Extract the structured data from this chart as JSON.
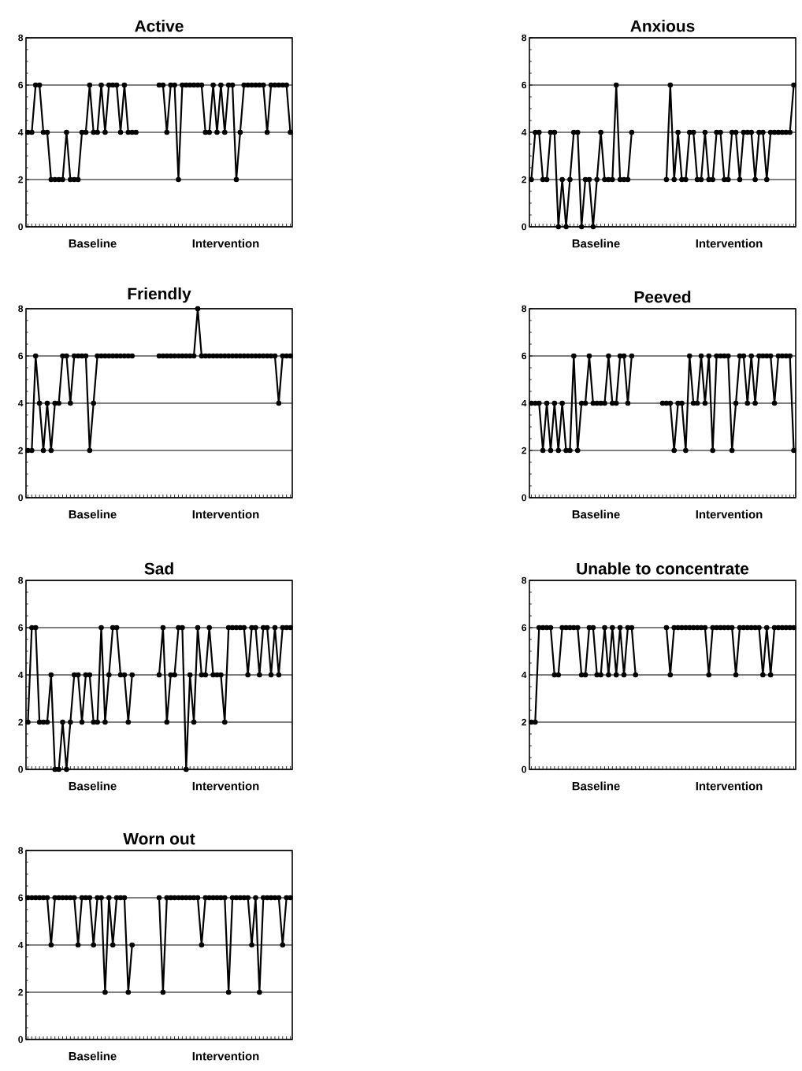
{
  "chart_data": [
    {
      "type": "line",
      "title": "Active",
      "categories": [
        null,
        null,
        null,
        null,
        null,
        null,
        null,
        null,
        null,
        null,
        null,
        null,
        null,
        null,
        null,
        null,
        null,
        null,
        null,
        null,
        null,
        null,
        null,
        null,
        null,
        null,
        null,
        null,
        null,
        null,
        null,
        null,
        null,
        null,
        null,
        null,
        null,
        null,
        null,
        null,
        null,
        null,
        null,
        null,
        null,
        null,
        null,
        null,
        null,
        null,
        null,
        null,
        null,
        null,
        null,
        null,
        null,
        null,
        null,
        null,
        null,
        null,
        null,
        null,
        null,
        null,
        null,
        null,
        null
      ],
      "ylim": [
        0,
        8
      ],
      "yticks": [
        0,
        2,
        4,
        6,
        8
      ],
      "grid": "y",
      "marker": "circle",
      "line_style": "solid",
      "tick_labels": "y",
      "annotations": [
        "Baseline",
        "Intervention"
      ],
      "series": [
        {
          "color": "#000000",
          "values": [
            4,
            4,
            6,
            6,
            4,
            4,
            2,
            2,
            2,
            2,
            4,
            2,
            2,
            2,
            4,
            4,
            6,
            4,
            4,
            6,
            4,
            6,
            6,
            6,
            4,
            6,
            4,
            4,
            4,
            null,
            null,
            null,
            null,
            null,
            6,
            6,
            4,
            6,
            6,
            2,
            6,
            6,
            6,
            6,
            6,
            6,
            4,
            4,
            6,
            4,
            6,
            4,
            6,
            6,
            2,
            4,
            6,
            6,
            6,
            6,
            6,
            6,
            4,
            6,
            6,
            6,
            6,
            6,
            4
          ]
        }
      ]
    },
    {
      "type": "line",
      "title": "Anxious",
      "categories": [
        null,
        null,
        null,
        null,
        null,
        null,
        null,
        null,
        null,
        null,
        null,
        null,
        null,
        null,
        null,
        null,
        null,
        null,
        null,
        null,
        null,
        null,
        null,
        null,
        null,
        null,
        null,
        null,
        null,
        null,
        null,
        null,
        null,
        null,
        null,
        null,
        null,
        null,
        null,
        null,
        null,
        null,
        null,
        null,
        null,
        null,
        null,
        null,
        null,
        null,
        null,
        null,
        null,
        null,
        null,
        null,
        null,
        null,
        null,
        null,
        null,
        null,
        null,
        null,
        null,
        null,
        null,
        null,
        null
      ],
      "ylim": [
        0,
        8
      ],
      "yticks": [
        0,
        2,
        4,
        6,
        8
      ],
      "grid": "y",
      "marker": "circle",
      "line_style": "solid",
      "tick_labels": "y",
      "annotations": [
        "Baseline",
        "Intervention"
      ],
      "series": [
        {
          "color": "#000000",
          "values": [
            2,
            4,
            4,
            2,
            2,
            4,
            4,
            0,
            2,
            0,
            2,
            4,
            4,
            0,
            2,
            2,
            0,
            2,
            4,
            2,
            2,
            2,
            6,
            2,
            2,
            2,
            4,
            null,
            null,
            null,
            null,
            null,
            null,
            null,
            null,
            2,
            6,
            2,
            4,
            2,
            2,
            4,
            4,
            2,
            2,
            4,
            2,
            2,
            4,
            4,
            2,
            2,
            4,
            4,
            2,
            4,
            4,
            4,
            2,
            4,
            4,
            2,
            4,
            4,
            4,
            4,
            4,
            4,
            6
          ]
        }
      ]
    },
    {
      "type": "line",
      "title": "Friendly",
      "categories": [
        null,
        null,
        null,
        null,
        null,
        null,
        null,
        null,
        null,
        null,
        null,
        null,
        null,
        null,
        null,
        null,
        null,
        null,
        null,
        null,
        null,
        null,
        null,
        null,
        null,
        null,
        null,
        null,
        null,
        null,
        null,
        null,
        null,
        null,
        null,
        null,
        null,
        null,
        null,
        null,
        null,
        null,
        null,
        null,
        null,
        null,
        null,
        null,
        null,
        null,
        null,
        null,
        null,
        null,
        null,
        null,
        null,
        null,
        null,
        null,
        null,
        null,
        null,
        null,
        null,
        null,
        null,
        null,
        null
      ],
      "ylim": [
        0,
        8
      ],
      "yticks": [
        0,
        2,
        4,
        6,
        8
      ],
      "grid": "y",
      "marker": "circle",
      "line_style": "solid",
      "tick_labels": "y",
      "annotations": [
        "Baseline",
        "Intervention"
      ],
      "series": [
        {
          "color": "#000000",
          "values": [
            2,
            2,
            6,
            4,
            2,
            4,
            2,
            4,
            4,
            6,
            6,
            4,
            6,
            6,
            6,
            6,
            2,
            4,
            6,
            6,
            6,
            6,
            6,
            6,
            6,
            6,
            6,
            6,
            null,
            null,
            null,
            null,
            null,
            null,
            6,
            6,
            6,
            6,
            6,
            6,
            6,
            6,
            6,
            6,
            8,
            6,
            6,
            6,
            6,
            6,
            6,
            6,
            6,
            6,
            6,
            6,
            6,
            6,
            6,
            6,
            6,
            6,
            6,
            6,
            6,
            4,
            6,
            6,
            6
          ]
        }
      ]
    },
    {
      "type": "line",
      "title": "Peeved",
      "categories": [
        null,
        null,
        null,
        null,
        null,
        null,
        null,
        null,
        null,
        null,
        null,
        null,
        null,
        null,
        null,
        null,
        null,
        null,
        null,
        null,
        null,
        null,
        null,
        null,
        null,
        null,
        null,
        null,
        null,
        null,
        null,
        null,
        null,
        null,
        null,
        null,
        null,
        null,
        null,
        null,
        null,
        null,
        null,
        null,
        null,
        null,
        null,
        null,
        null,
        null,
        null,
        null,
        null,
        null,
        null,
        null,
        null,
        null,
        null,
        null,
        null,
        null,
        null,
        null,
        null,
        null,
        null,
        null,
        null
      ],
      "ylim": [
        0,
        8
      ],
      "yticks": [
        0,
        2,
        4,
        6,
        8
      ],
      "grid": "y",
      "marker": "circle",
      "line_style": "solid",
      "tick_labels": "y",
      "annotations": [
        "Baseline",
        "Intervention"
      ],
      "series": [
        {
          "color": "#000000",
          "values": [
            4,
            4,
            4,
            2,
            4,
            2,
            4,
            2,
            4,
            2,
            2,
            6,
            2,
            4,
            4,
            6,
            4,
            4,
            4,
            4,
            6,
            4,
            4,
            6,
            6,
            4,
            6,
            null,
            null,
            null,
            null,
            null,
            null,
            null,
            4,
            4,
            4,
            2,
            4,
            4,
            2,
            6,
            4,
            4,
            6,
            4,
            6,
            2,
            6,
            6,
            6,
            6,
            2,
            4,
            6,
            6,
            4,
            6,
            4,
            6,
            6,
            6,
            6,
            4,
            6,
            6,
            6,
            6,
            2
          ]
        }
      ]
    },
    {
      "type": "line",
      "title": "Sad",
      "categories": [
        null,
        null,
        null,
        null,
        null,
        null,
        null,
        null,
        null,
        null,
        null,
        null,
        null,
        null,
        null,
        null,
        null,
        null,
        null,
        null,
        null,
        null,
        null,
        null,
        null,
        null,
        null,
        null,
        null,
        null,
        null,
        null,
        null,
        null,
        null,
        null,
        null,
        null,
        null,
        null,
        null,
        null,
        null,
        null,
        null,
        null,
        null,
        null,
        null,
        null,
        null,
        null,
        null,
        null,
        null,
        null,
        null,
        null,
        null,
        null,
        null,
        null,
        null,
        null,
        null,
        null,
        null,
        null,
        null
      ],
      "ylim": [
        0,
        8
      ],
      "yticks": [
        0,
        2,
        4,
        6,
        8
      ],
      "grid": "y",
      "marker": "circle",
      "line_style": "solid",
      "tick_labels": "y",
      "annotations": [
        "Baseline",
        "Intervention"
      ],
      "series": [
        {
          "color": "#000000",
          "values": [
            2,
            6,
            6,
            2,
            2,
            2,
            4,
            0,
            0,
            2,
            0,
            2,
            4,
            4,
            2,
            4,
            4,
            2,
            2,
            6,
            2,
            4,
            6,
            6,
            4,
            4,
            2,
            4,
            null,
            null,
            null,
            null,
            null,
            null,
            4,
            6,
            2,
            4,
            4,
            6,
            6,
            0,
            4,
            2,
            6,
            4,
            4,
            6,
            4,
            4,
            4,
            2,
            6,
            6,
            6,
            6,
            6,
            4,
            6,
            6,
            4,
            6,
            6,
            4,
            6,
            4,
            6,
            6,
            6
          ]
        }
      ]
    },
    {
      "type": "line",
      "title": "Unable to concentrate",
      "categories": [
        null,
        null,
        null,
        null,
        null,
        null,
        null,
        null,
        null,
        null,
        null,
        null,
        null,
        null,
        null,
        null,
        null,
        null,
        null,
        null,
        null,
        null,
        null,
        null,
        null,
        null,
        null,
        null,
        null,
        null,
        null,
        null,
        null,
        null,
        null,
        null,
        null,
        null,
        null,
        null,
        null,
        null,
        null,
        null,
        null,
        null,
        null,
        null,
        null,
        null,
        null,
        null,
        null,
        null,
        null,
        null,
        null,
        null,
        null,
        null,
        null,
        null,
        null,
        null,
        null,
        null,
        null,
        null,
        null
      ],
      "ylim": [
        0,
        8
      ],
      "yticks": [
        0,
        2,
        4,
        6,
        8
      ],
      "grid": "y",
      "marker": "circle",
      "line_style": "solid",
      "tick_labels": "y",
      "annotations": [
        "Baseline",
        "Intervention"
      ],
      "series": [
        {
          "color": "#000000",
          "values": [
            2,
            2,
            6,
            6,
            6,
            6,
            4,
            4,
            6,
            6,
            6,
            6,
            6,
            4,
            4,
            6,
            6,
            4,
            4,
            6,
            4,
            6,
            4,
            6,
            4,
            6,
            6,
            4,
            null,
            null,
            null,
            null,
            null,
            null,
            null,
            6,
            4,
            6,
            6,
            6,
            6,
            6,
            6,
            6,
            6,
            6,
            4,
            6,
            6,
            6,
            6,
            6,
            6,
            4,
            6,
            6,
            6,
            6,
            6,
            6,
            4,
            6,
            4,
            6,
            6,
            6,
            6,
            6,
            6
          ]
        }
      ]
    },
    {
      "type": "line",
      "title": "Worn out",
      "categories": [
        null,
        null,
        null,
        null,
        null,
        null,
        null,
        null,
        null,
        null,
        null,
        null,
        null,
        null,
        null,
        null,
        null,
        null,
        null,
        null,
        null,
        null,
        null,
        null,
        null,
        null,
        null,
        null,
        null,
        null,
        null,
        null,
        null,
        null,
        null,
        null,
        null,
        null,
        null,
        null,
        null,
        null,
        null,
        null,
        null,
        null,
        null,
        null,
        null,
        null,
        null,
        null,
        null,
        null,
        null,
        null,
        null,
        null,
        null,
        null,
        null,
        null,
        null,
        null,
        null,
        null,
        null,
        null,
        null
      ],
      "ylim": [
        0,
        8
      ],
      "yticks": [
        0,
        2,
        4,
        6,
        8
      ],
      "grid": "y",
      "marker": "circle",
      "line_style": "solid",
      "tick_labels": "y",
      "annotations": [
        "Baseline",
        "Intervention"
      ],
      "series": [
        {
          "color": "#000000",
          "values": [
            6,
            6,
            6,
            6,
            6,
            6,
            4,
            6,
            6,
            6,
            6,
            6,
            6,
            4,
            6,
            6,
            6,
            4,
            6,
            6,
            2,
            6,
            4,
            6,
            6,
            6,
            2,
            4,
            null,
            null,
            null,
            null,
            null,
            null,
            6,
            2,
            6,
            6,
            6,
            6,
            6,
            6,
            6,
            6,
            6,
            4,
            6,
            6,
            6,
            6,
            6,
            6,
            2,
            6,
            6,
            6,
            6,
            6,
            4,
            6,
            2,
            6,
            6,
            6,
            6,
            6,
            4,
            6,
            6
          ]
        }
      ]
    }
  ]
}
